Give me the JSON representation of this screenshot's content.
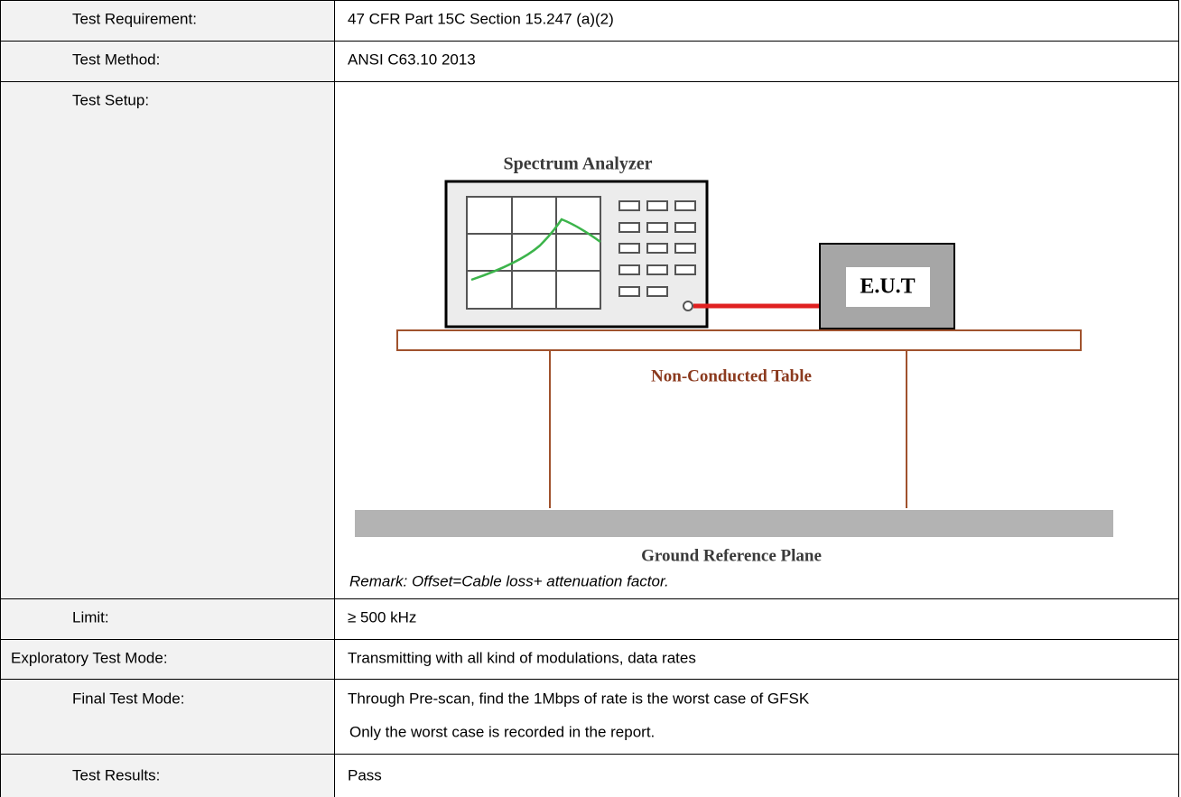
{
  "rows": [
    {
      "label": "Test Requirement:",
      "value": "47 CFR Part 15C Section 15.247 (a)(2)"
    },
    {
      "label": "Test Method:",
      "value": "ANSI C63.10 2013"
    },
    {
      "label": "Test Setup:",
      "diagram": {
        "analyzer": "Spectrum Analyzer",
        "eut": "E.U.T",
        "table": "Non-Conducted Table",
        "ground": "Ground Reference Plane"
      },
      "remark": "Remark: Offset=Cable loss+ attenuation factor."
    },
    {
      "label": "Limit:",
      "value": "≥ 500 kHz"
    },
    {
      "label": "Exploratory Test Mode:",
      "value": "Transmitting with all kind of modulations, data rates"
    },
    {
      "label": "Final Test Mode:",
      "lines": [
        "Through Pre-scan, find the 1Mbps of rate is the worst case of GFSK",
        "Only the worst case is recorded in the report."
      ]
    },
    {
      "label": "Test Results:",
      "value": "Pass"
    }
  ]
}
